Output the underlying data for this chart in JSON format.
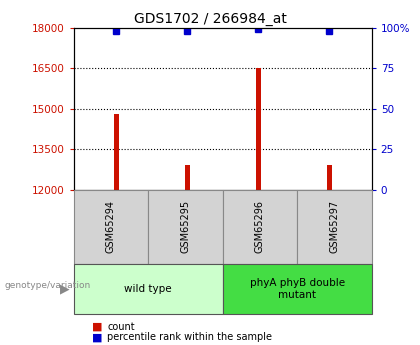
{
  "title": "GDS1702 / 266984_at",
  "samples": [
    "GSM65294",
    "GSM65295",
    "GSM65296",
    "GSM65297"
  ],
  "counts": [
    14800,
    12900,
    16500,
    12900
  ],
  "percentile_ranks": [
    98,
    98,
    99,
    98
  ],
  "ylim_left": [
    12000,
    18000
  ],
  "ylim_right": [
    0,
    100
  ],
  "yticks_left": [
    12000,
    13500,
    15000,
    16500,
    18000
  ],
  "yticks_right": [
    0,
    25,
    50,
    75,
    100
  ],
  "ytick_labels_right": [
    "0",
    "25",
    "50",
    "75",
    "100%"
  ],
  "bar_color": "#cc1100",
  "dot_color": "#0000cc",
  "groups": [
    {
      "label": "wild type",
      "samples": [
        0,
        1
      ],
      "color": "#ccffcc"
    },
    {
      "label": "phyA phyB double\nmutant",
      "samples": [
        2,
        3
      ],
      "color": "#44dd44"
    }
  ],
  "genotype_label": "genotype/variation",
  "legend_items": [
    {
      "label": "count",
      "color": "#cc1100"
    },
    {
      "label": "percentile rank within the sample",
      "color": "#0000cc"
    }
  ],
  "bg_color": "#ffffff",
  "plot_bg": "#ffffff",
  "bar_bottom": 12000,
  "sample_box_color": "#d3d3d3",
  "sample_box_edge": "#888888"
}
